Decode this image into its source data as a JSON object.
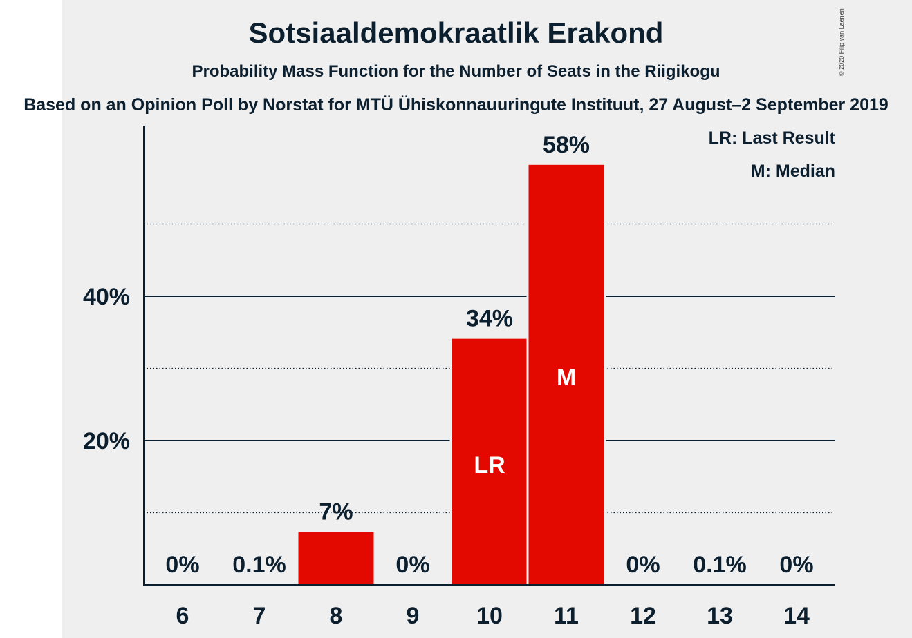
{
  "chart_data": {
    "type": "bar",
    "title": "Sotsiaaldemokraatlik Erakond",
    "subtitle": "Probability Mass Function for the Number of Seats in the Riigikogu",
    "subtitle2": "Based on an Opinion Poll by Norstat for MTÜ Ühiskonnauuringute Instituut, 27 August–2 September 2019",
    "copyright": "© 2020 Filip van Laenen",
    "categories": [
      "6",
      "7",
      "8",
      "9",
      "10",
      "11",
      "12",
      "13",
      "14"
    ],
    "values": [
      0,
      0.1,
      7.3,
      0,
      34.1,
      58.2,
      0,
      0.1,
      0
    ],
    "value_labels": [
      "0%",
      "0.1%",
      "7%",
      "0%",
      "34%",
      "58%",
      "0%",
      "0.1%",
      "0%"
    ],
    "bar_markers": [
      "",
      "",
      "",
      "",
      "LR",
      "M",
      "",
      "",
      ""
    ],
    "yticks": [
      {
        "value": 20,
        "label": "20%"
      },
      {
        "value": 40,
        "label": "40%"
      }
    ],
    "minor_gridlines": [
      10,
      30,
      50
    ],
    "ylim": [
      0,
      63.5
    ],
    "legend": [
      "LR: Last Result",
      "M: Median"
    ],
    "colors": {
      "bar": "#e30800",
      "text": "#0c1f2f",
      "panel": "#efefef"
    }
  }
}
